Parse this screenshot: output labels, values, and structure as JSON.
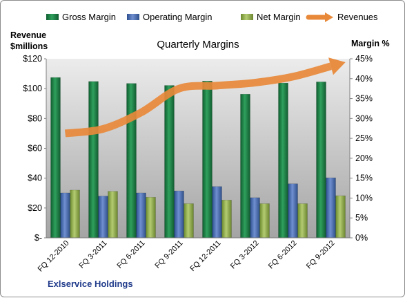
{
  "chart_data": {
    "type": "bar",
    "title": "Quarterly Margins",
    "left_axis_title_line1": "Revenue",
    "left_axis_title_line2": "$millions",
    "right_axis_title": "Margin %",
    "company": "Exlservice Holdings",
    "categories": [
      "FQ 12-2010",
      "FQ 3-2011",
      "FQ 6-2011",
      "FQ 9-2011",
      "FQ 12-2011",
      "FQ 3-2012",
      "FQ 6-2012",
      "FQ 9-2012"
    ],
    "left_ticks": [
      "$-",
      "$20",
      "$40",
      "$60",
      "$80",
      "$100",
      "$120"
    ],
    "right_ticks": [
      "0%",
      "5%",
      "10%",
      "15%",
      "20%",
      "25%",
      "30%",
      "35%",
      "40%",
      "45%"
    ],
    "ylim_left": [
      0,
      120
    ],
    "ylim_right": [
      0,
      45
    ],
    "grid": false,
    "legend_position": "top",
    "series": [
      {
        "name": "Gross Margin",
        "axis": "right",
        "kind": "bar",
        "color": "#1e7a45",
        "values": [
          40.3,
          39.3,
          38.8,
          38.3,
          39.4,
          36.1,
          38.9,
          39.2
        ]
      },
      {
        "name": "Operating Margin",
        "axis": "right",
        "kind": "bar",
        "color": "#4a6db0",
        "values": [
          11.3,
          10.5,
          11.3,
          11.8,
          12.9,
          10.1,
          13.6,
          15.1
        ]
      },
      {
        "name": "Net Margin",
        "axis": "right",
        "kind": "bar",
        "color": "#8faa4a",
        "values": [
          12.0,
          11.7,
          10.2,
          8.6,
          9.5,
          8.6,
          8.6,
          10.6
        ]
      },
      {
        "name": "Revenues",
        "axis": "left",
        "kind": "line",
        "color": "#e8893a",
        "values": [
          70,
          73,
          84,
          100,
          102,
          104,
          108,
          115
        ]
      }
    ]
  }
}
